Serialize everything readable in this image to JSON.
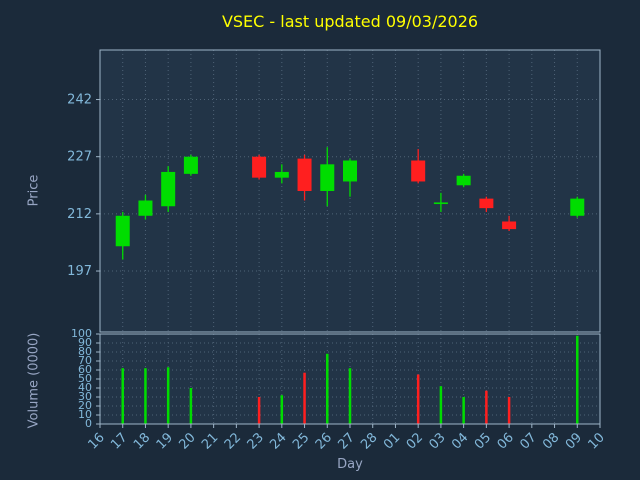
{
  "window": {
    "title": "VSEC - last updated 09/03/2026"
  },
  "colors": {
    "background": "#1b2a3a",
    "panel_background": "#223447",
    "grid": "#4f6377",
    "border": "#9fb6c9",
    "up": "#00dd00",
    "down": "#ff1f1f",
    "title": "#ffff00",
    "axis_label": "#98a6c4",
    "tick_label": "#82b8da"
  },
  "chart_data": {
    "type": "candlestick",
    "title": "VSEC - last updated 09/03/2026",
    "symbol": "VSEC",
    "last_updated": "09/03/2026",
    "xlabel": "Day",
    "grid": true,
    "price_axis": {
      "label": "Price",
      "ticks": [
        242,
        227,
        212,
        197
      ],
      "min": 181,
      "max": 255
    },
    "volume_axis": {
      "label": "Volume (0000)",
      "ticks": [
        100,
        90,
        80,
        70,
        60,
        50,
        40,
        30,
        20,
        10,
        0
      ],
      "min": 0,
      "max": 100
    },
    "x_ticks": [
      "16",
      "17",
      "18",
      "19",
      "20",
      "21",
      "22",
      "23",
      "24",
      "25",
      "26",
      "27",
      "28",
      "01",
      "02",
      "03",
      "04",
      "05",
      "06",
      "07",
      "08",
      "09",
      "10"
    ],
    "candles": [
      {
        "day": "17",
        "open": 203.5,
        "high": 212.5,
        "low": 200,
        "close": 211.5,
        "volume": 62
      },
      {
        "day": "18",
        "open": 211.5,
        "high": 217,
        "low": 210.5,
        "close": 215.5,
        "volume": 62
      },
      {
        "day": "19",
        "open": 214,
        "high": 224.5,
        "low": 212.5,
        "close": 223,
        "volume": 63
      },
      {
        "day": "20",
        "open": 222.5,
        "high": 227.5,
        "low": 222,
        "close": 227,
        "volume": 40
      },
      {
        "day": "23",
        "open": 227,
        "high": 227.5,
        "low": 221,
        "close": 221.5,
        "volume": 30
      },
      {
        "day": "24",
        "open": 221.5,
        "high": 225,
        "low": 220,
        "close": 223,
        "volume": 32
      },
      {
        "day": "25",
        "open": 226.5,
        "high": 227.5,
        "low": 215.5,
        "close": 218,
        "volume": 57
      },
      {
        "day": "26",
        "open": 218,
        "high": 229.5,
        "low": 214,
        "close": 225,
        "volume": 78
      },
      {
        "day": "27",
        "open": 220.5,
        "high": 226.5,
        "low": 216.5,
        "close": 226,
        "volume": 62
      },
      {
        "day": "02",
        "open": 226,
        "high": 229,
        "low": 220,
        "close": 220.5,
        "volume": 55
      },
      {
        "day": "03",
        "open": 215,
        "high": 217.5,
        "low": 212.5,
        "close": 215,
        "volume": 42
      },
      {
        "day": "04",
        "open": 219.5,
        "high": 222.5,
        "low": 219,
        "close": 222,
        "volume": 30
      },
      {
        "day": "05",
        "open": 216,
        "high": 216.5,
        "low": 212.5,
        "close": 213.5,
        "volume": 37
      },
      {
        "day": "06",
        "open": 210,
        "high": 211.5,
        "low": 207.5,
        "close": 208,
        "volume": 30
      },
      {
        "day": "09",
        "open": 211.5,
        "high": 216.5,
        "low": 211,
        "close": 216,
        "volume": 98
      }
    ]
  }
}
